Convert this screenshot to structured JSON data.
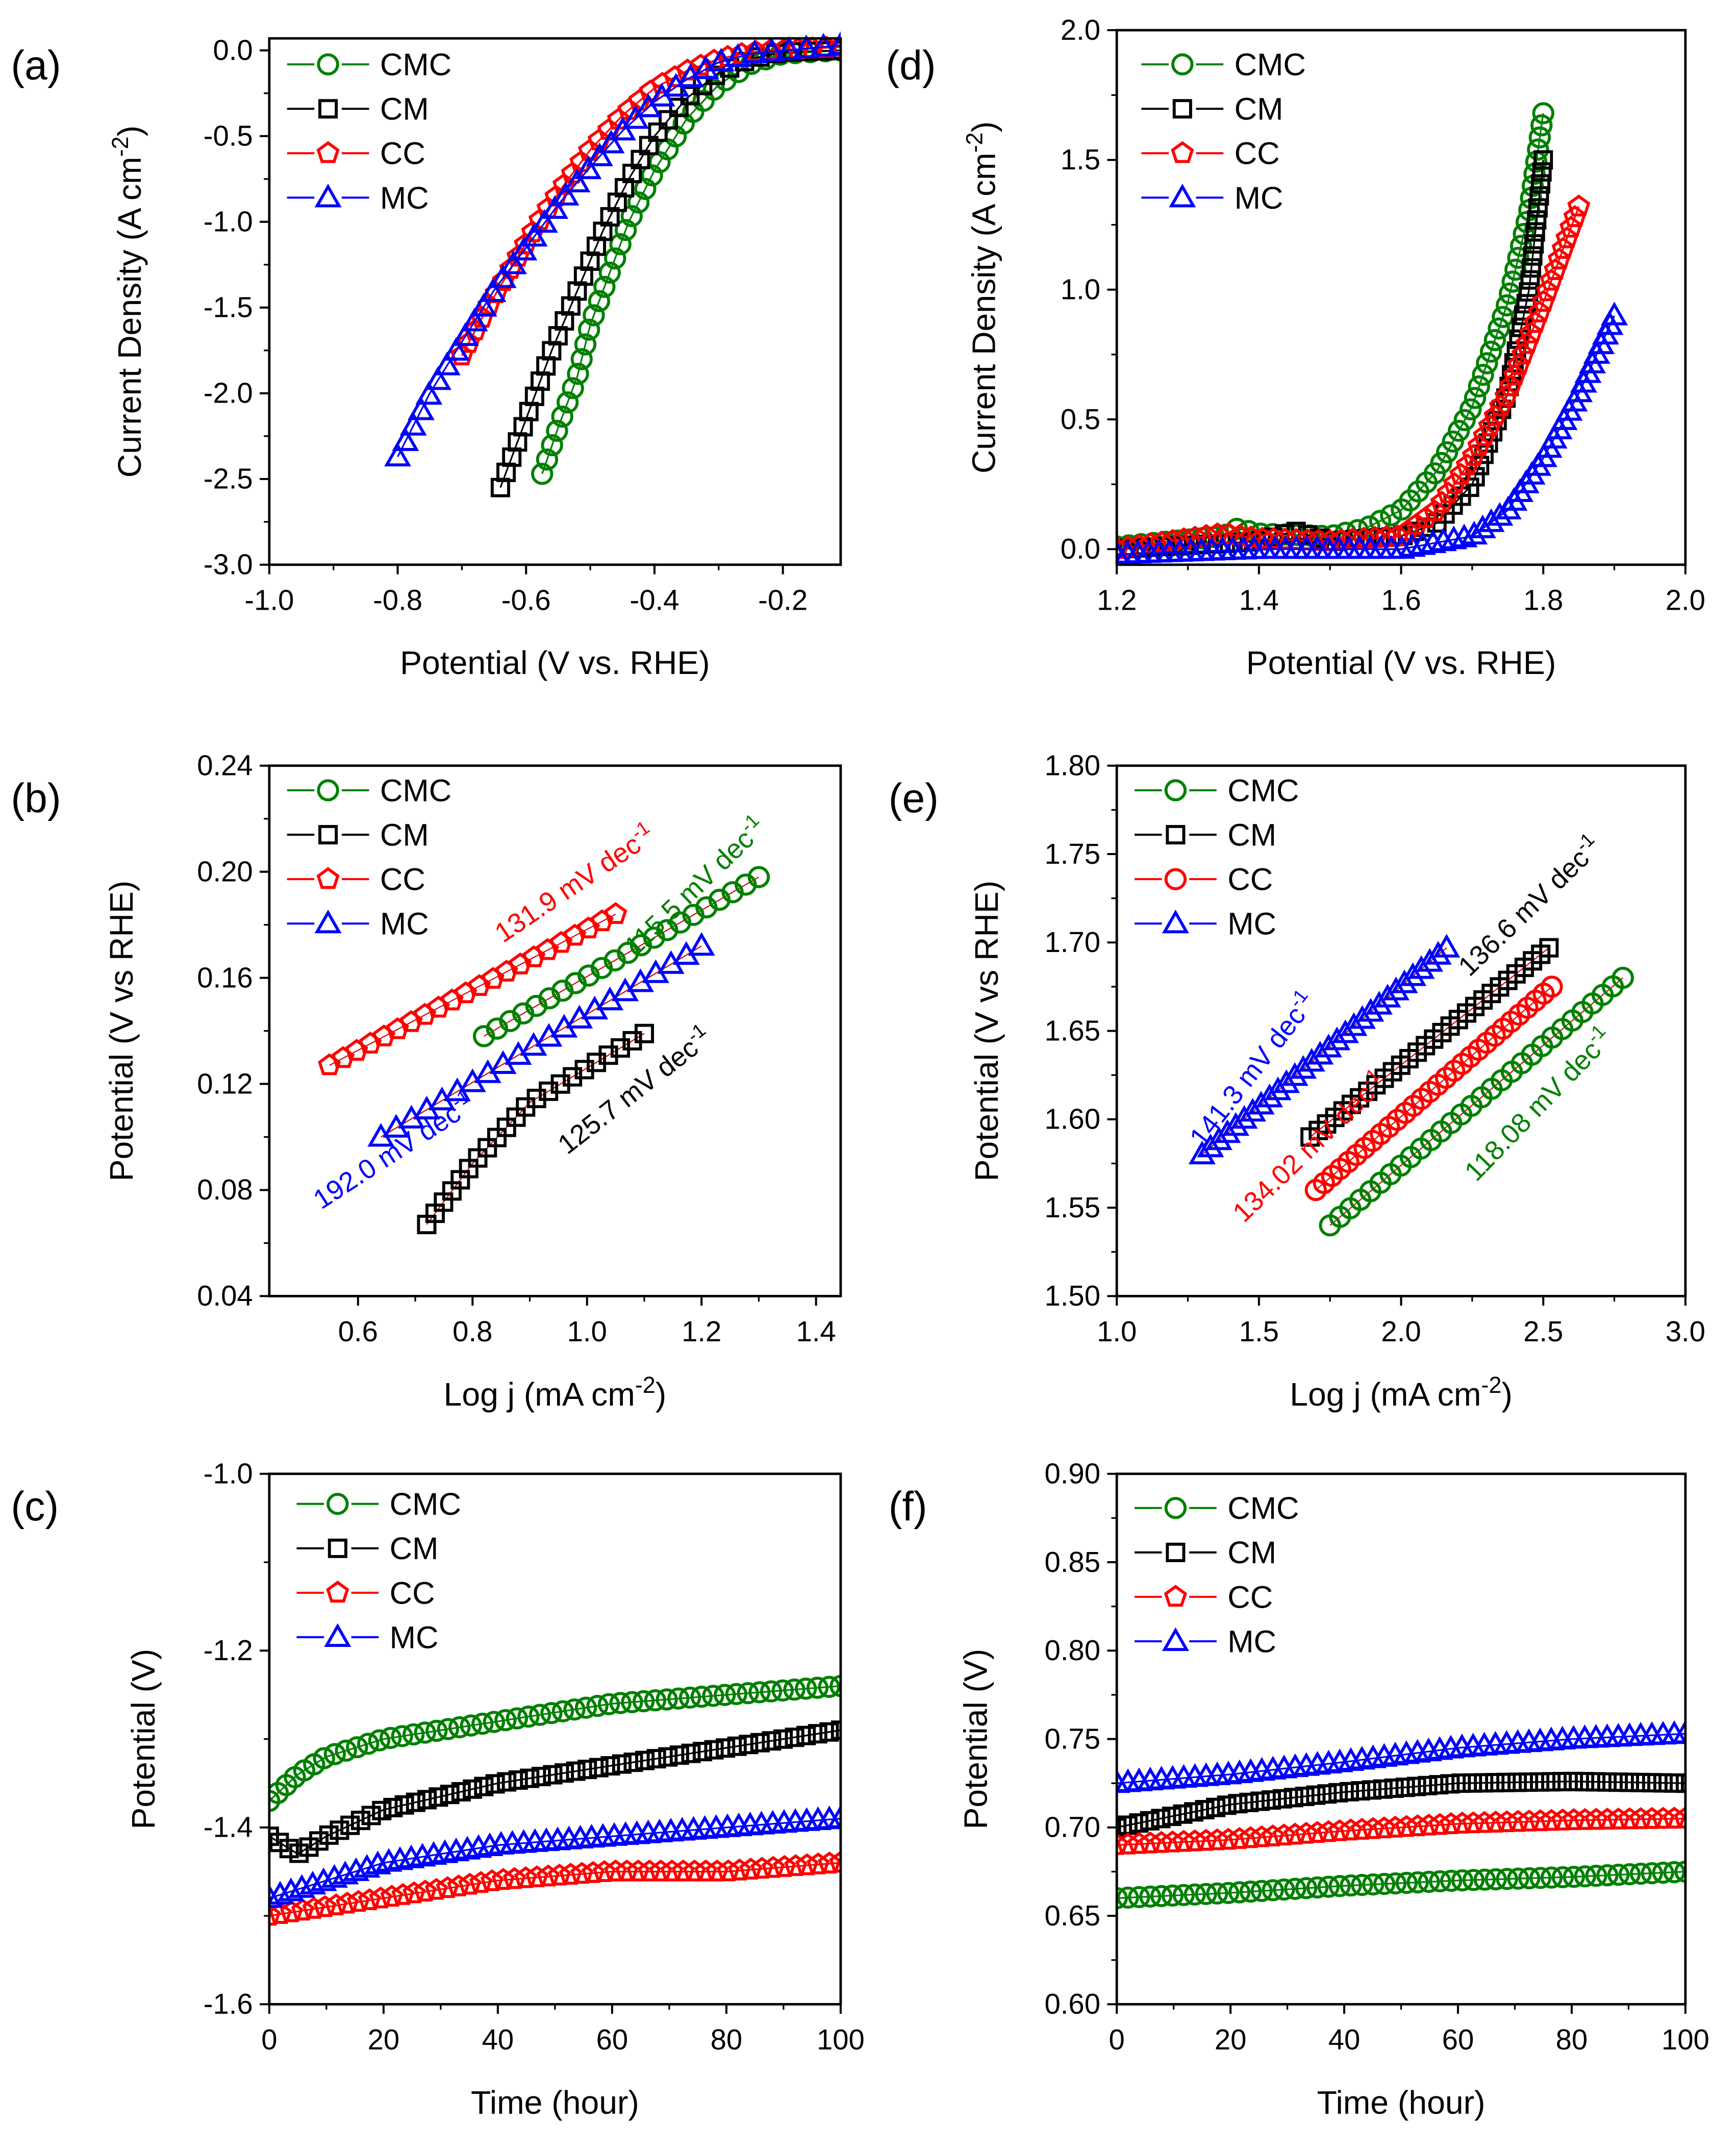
{
  "colors": {
    "CMC": "#008000",
    "CM": "#000000",
    "CC": "#ff0000",
    "MC": "#0000ff"
  },
  "chart_data": [
    {
      "id": "a",
      "type": "scatter",
      "panel_label": "(a)",
      "xlabel": {
        "main": "Potential (V vs. RHE)",
        "sup": "",
        "end": ""
      },
      "ylabel": {
        "main": "Current Density (A cm",
        "sup": "-2",
        "end": ")"
      },
      "xlim": [
        -1.0,
        -0.11
      ],
      "ylim": [
        -3.0,
        0.07
      ],
      "xticks": [
        -1.0,
        -0.8,
        -0.6,
        -0.4,
        -0.2
      ],
      "xticklabels": [
        "-1.0",
        "-0.8",
        "-0.6",
        "-0.4",
        "-0.2"
      ],
      "yticks": [
        0.0,
        -0.5,
        -1.0,
        -1.5,
        -2.0,
        -2.5,
        -3.0
      ],
      "yticklabels": [
        "0.0",
        "-0.5",
        "-1.0",
        "-1.5",
        "-2.0",
        "-2.5",
        "-3.0"
      ],
      "legend": "top-left",
      "series": [
        {
          "name": "CMC",
          "marker": "circle",
          "x": [
            -0.575,
            -0.55,
            -0.52,
            -0.5,
            -0.47,
            -0.44,
            -0.4,
            -0.35,
            -0.3,
            -0.25,
            -0.2,
            -0.11
          ],
          "y": [
            -2.47,
            -2.2,
            -1.9,
            -1.6,
            -1.3,
            -1.0,
            -0.7,
            -0.4,
            -0.2,
            -0.08,
            -0.02,
            0.0
          ]
        },
        {
          "name": "CM",
          "marker": "square",
          "x": [
            -0.64,
            -0.6,
            -0.56,
            -0.52,
            -0.48,
            -0.44,
            -0.4,
            -0.35,
            -0.3,
            -0.25,
            -0.2,
            -0.11
          ],
          "y": [
            -2.55,
            -2.15,
            -1.75,
            -1.4,
            -1.05,
            -0.75,
            -0.5,
            -0.28,
            -0.13,
            -0.05,
            -0.01,
            0.0
          ]
        },
        {
          "name": "CC",
          "marker": "pentagon",
          "x": [
            -0.7,
            -0.66,
            -0.62,
            -0.58,
            -0.54,
            -0.5,
            -0.45,
            -0.4,
            -0.35,
            -0.3,
            -0.25,
            -0.11
          ],
          "y": [
            -1.78,
            -1.5,
            -1.25,
            -1.0,
            -0.78,
            -0.58,
            -0.38,
            -0.22,
            -0.12,
            -0.05,
            -0.01,
            0.02
          ]
        },
        {
          "name": "MC",
          "marker": "triangle",
          "x": [
            -0.8,
            -0.75,
            -0.7,
            -0.65,
            -0.6,
            -0.55,
            -0.5,
            -0.45,
            -0.4,
            -0.35,
            -0.3,
            -0.25,
            -0.11
          ],
          "y": [
            -2.37,
            -2.0,
            -1.7,
            -1.4,
            -1.15,
            -0.9,
            -0.68,
            -0.47,
            -0.3,
            -0.17,
            -0.07,
            -0.02,
            0.03
          ]
        }
      ],
      "annotations": []
    },
    {
      "id": "d",
      "type": "scatter",
      "panel_label": "(d)",
      "xlabel": {
        "main": "Potential (V vs. RHE)",
        "sup": "",
        "end": ""
      },
      "ylabel": {
        "main": "Current Density (A cm",
        "sup": "-2",
        "end": ")"
      },
      "xlim": [
        1.2,
        2.0
      ],
      "ylim": [
        -0.06,
        2.0
      ],
      "xticks": [
        1.2,
        1.4,
        1.6,
        1.8,
        2.0
      ],
      "xticklabels": [
        "1.2",
        "1.4",
        "1.6",
        "1.8",
        "2.0"
      ],
      "yticks": [
        0.0,
        0.5,
        1.0,
        1.5,
        2.0
      ],
      "yticklabels": [
        "0.0",
        "0.5",
        "1.0",
        "1.5",
        "2.0"
      ],
      "legend": "top-left",
      "series": [
        {
          "name": "CMC",
          "marker": "circle",
          "x": [
            1.2,
            1.35,
            1.37,
            1.4,
            1.5,
            1.55,
            1.6,
            1.65,
            1.7,
            1.75,
            1.78,
            1.8
          ],
          "y": [
            0.01,
            0.05,
            0.08,
            0.06,
            0.05,
            0.08,
            0.15,
            0.3,
            0.55,
            0.95,
            1.3,
            1.68
          ]
        },
        {
          "name": "CM",
          "marker": "square",
          "x": [
            1.2,
            1.4,
            1.45,
            1.5,
            1.6,
            1.65,
            1.7,
            1.75,
            1.78,
            1.8
          ],
          "y": [
            0.0,
            0.03,
            0.07,
            0.03,
            0.05,
            0.1,
            0.25,
            0.6,
            1.0,
            1.5
          ]
        },
        {
          "name": "CC",
          "marker": "pentagon",
          "x": [
            1.2,
            1.35,
            1.4,
            1.5,
            1.6,
            1.65,
            1.7,
            1.75,
            1.8,
            1.85
          ],
          "y": [
            0.0,
            0.06,
            0.04,
            0.03,
            0.05,
            0.15,
            0.35,
            0.6,
            0.95,
            1.32
          ]
        },
        {
          "name": "MC",
          "marker": "triangle",
          "x": [
            1.2,
            1.4,
            1.6,
            1.7,
            1.75,
            1.8,
            1.85,
            1.9
          ],
          "y": [
            -0.02,
            0.0,
            0.0,
            0.05,
            0.15,
            0.35,
            0.6,
            0.9
          ]
        }
      ],
      "annotations": []
    },
    {
      "id": "b",
      "type": "scatter",
      "panel_label": "(b)",
      "xlabel": {
        "main": "Log j (mA cm",
        "sup": "-2",
        "end": ")"
      },
      "ylabel": {
        "main": "Potential (V vs RHE)",
        "sup": "",
        "end": ""
      },
      "xlim": [
        0.445,
        1.443
      ],
      "ylim": [
        0.04,
        0.24
      ],
      "xticks": [
        0.6,
        0.8,
        1.0,
        1.2,
        1.4
      ],
      "xticklabels": [
        "0.6",
        "0.8",
        "1.0",
        "1.2",
        "1.4"
      ],
      "yticks": [
        0.04,
        0.08,
        0.12,
        0.16,
        0.2,
        0.24
      ],
      "yticklabels": [
        "0.04",
        "0.08",
        "0.12",
        "0.16",
        "0.20",
        "0.24"
      ],
      "legend": "top-left",
      "series": [
        {
          "name": "CMC",
          "marker": "circle",
          "x": [
            0.82,
            1.3
          ],
          "y": [
            0.138,
            0.198
          ]
        },
        {
          "name": "CM",
          "marker": "square",
          "x": [
            0.72,
            0.8,
            0.9,
            1.1
          ],
          "y": [
            0.067,
            0.09,
            0.113,
            0.139
          ]
        },
        {
          "name": "CC",
          "marker": "pentagon",
          "x": [
            0.55,
            1.05
          ],
          "y": [
            0.127,
            0.184
          ]
        },
        {
          "name": "MC",
          "marker": "triangle",
          "x": [
            0.64,
            1.2
          ],
          "y": [
            0.1,
            0.172
          ]
        }
      ],
      "annotations": [
        {
          "text": "131.9 mV dec",
          "sup": "-1",
          "series": "CC"
        },
        {
          "text": "115.5 mV dec",
          "sup": "-1",
          "series": "CMC"
        },
        {
          "text": "192.0 mV dec",
          "sup": "-1",
          "series": "MC"
        },
        {
          "text": "125.7 mV dec",
          "sup": "-1",
          "series": "CM"
        }
      ]
    },
    {
      "id": "e",
      "type": "scatter",
      "panel_label": "(e)",
      "xlabel": {
        "main": "Log j (mA cm",
        "sup": "-2",
        "end": ")"
      },
      "ylabel": {
        "main": "Potential (V vs RHE)",
        "sup": "",
        "end": ""
      },
      "xlim": [
        1.0,
        3.0
      ],
      "ylim": [
        1.5,
        1.8
      ],
      "xticks": [
        1.0,
        1.5,
        2.0,
        2.5,
        3.0
      ],
      "xticklabels": [
        "1.0",
        "1.5",
        "2.0",
        "2.5",
        "3.0"
      ],
      "yticks": [
        1.5,
        1.55,
        1.6,
        1.65,
        1.7,
        1.75,
        1.8
      ],
      "yticklabels": [
        "1.50",
        "1.55",
        "1.60",
        "1.65",
        "1.70",
        "1.75",
        "1.80"
      ],
      "legend": "top-left",
      "series": [
        {
          "name": "CMC",
          "marker": "circle",
          "x": [
            1.75,
            2.78
          ],
          "y": [
            1.54,
            1.68
          ]
        },
        {
          "name": "CM",
          "marker": "square",
          "x": [
            1.68,
            2.52
          ],
          "y": [
            1.59,
            1.697
          ]
        },
        {
          "name": "CC",
          "marker": "circle",
          "x": [
            1.7,
            2.53
          ],
          "y": [
            1.56,
            1.675
          ]
        },
        {
          "name": "MC",
          "marker": "triangle",
          "x": [
            1.3,
            2.16
          ],
          "y": [
            1.58,
            1.697
          ]
        }
      ],
      "annotations": [
        {
          "text": "141.3 mV dec",
          "sup": "-1",
          "series": "MC"
        },
        {
          "text": "136.6 mV dec",
          "sup": "-1",
          "series": "CM"
        },
        {
          "text": "134.02 mV dec",
          "sup": "-1",
          "series": "CC"
        },
        {
          "text": "118.08 mV dec",
          "sup": "-1",
          "series": "CMC"
        }
      ]
    },
    {
      "id": "c",
      "type": "scatter",
      "panel_label": "(c)",
      "xlabel": {
        "main": "Time (hour)",
        "sup": "",
        "end": ""
      },
      "ylabel": {
        "main": "Potential (V)",
        "sup": "",
        "end": ""
      },
      "xlim": [
        0,
        100
      ],
      "ylim": [
        -1.6,
        -1.0
      ],
      "xticks": [
        0,
        20,
        40,
        60,
        80,
        100
      ],
      "xticklabels": [
        "0",
        "20",
        "40",
        "60",
        "80",
        "100"
      ],
      "yticks": [
        -1.0,
        -1.2,
        -1.4,
        -1.6
      ],
      "yticklabels": [
        "-1.0",
        "-1.2",
        "-1.4",
        "-1.6"
      ],
      "legend": "top-left",
      "series": [
        {
          "name": "CMC",
          "marker": "circle",
          "x": [
            0,
            5,
            10,
            20,
            40,
            60,
            80,
            100
          ],
          "y": [
            -1.37,
            -1.34,
            -1.32,
            -1.3,
            -1.28,
            -1.26,
            -1.25,
            -1.24
          ]
        },
        {
          "name": "CM",
          "marker": "square",
          "x": [
            0,
            5,
            10,
            20,
            40,
            60,
            80,
            100
          ],
          "y": [
            -1.41,
            -1.43,
            -1.41,
            -1.38,
            -1.35,
            -1.33,
            -1.31,
            -1.29
          ]
        },
        {
          "name": "CC",
          "marker": "pentagon",
          "x": [
            0,
            10,
            20,
            40,
            60,
            80,
            100
          ],
          "y": [
            -1.5,
            -1.49,
            -1.48,
            -1.46,
            -1.45,
            -1.45,
            -1.44
          ]
        },
        {
          "name": "MC",
          "marker": "triangle",
          "x": [
            0,
            10,
            20,
            40,
            60,
            80,
            100
          ],
          "y": [
            -1.48,
            -1.46,
            -1.44,
            -1.42,
            -1.41,
            -1.4,
            -1.39
          ]
        }
      ],
      "annotations": []
    },
    {
      "id": "f",
      "type": "scatter",
      "panel_label": "(f)",
      "xlabel": {
        "main": "Time (hour)",
        "sup": "",
        "end": ""
      },
      "ylabel": {
        "main": "Potential (V)",
        "sup": "",
        "end": ""
      },
      "xlim": [
        0,
        100
      ],
      "ylim": [
        0.6,
        0.9
      ],
      "xticks": [
        0,
        20,
        40,
        60,
        80,
        100
      ],
      "xticklabels": [
        "0",
        "20",
        "40",
        "60",
        "80",
        "100"
      ],
      "yticks": [
        0.6,
        0.65,
        0.7,
        0.75,
        0.8,
        0.85,
        0.9
      ],
      "yticklabels": [
        "0.60",
        "0.65",
        "0.70",
        "0.75",
        "0.80",
        "0.85",
        "0.90"
      ],
      "legend": "top-left",
      "series": [
        {
          "name": "CMC",
          "marker": "circle",
          "x": [
            0,
            20,
            40,
            60,
            80,
            100
          ],
          "y": [
            0.66,
            0.663,
            0.667,
            0.67,
            0.672,
            0.675
          ]
        },
        {
          "name": "CM",
          "marker": "square",
          "x": [
            0,
            20,
            40,
            60,
            80,
            100
          ],
          "y": [
            0.7,
            0.713,
            0.72,
            0.725,
            0.726,
            0.725
          ]
        },
        {
          "name": "CC",
          "marker": "pentagon",
          "x": [
            0,
            20,
            40,
            60,
            80,
            100
          ],
          "y": [
            0.69,
            0.693,
            0.698,
            0.702,
            0.704,
            0.705
          ]
        },
        {
          "name": "MC",
          "marker": "triangle",
          "x": [
            0,
            20,
            40,
            60,
            80,
            100
          ],
          "y": [
            0.725,
            0.73,
            0.737,
            0.745,
            0.75,
            0.753
          ]
        }
      ],
      "annotations": []
    }
  ]
}
